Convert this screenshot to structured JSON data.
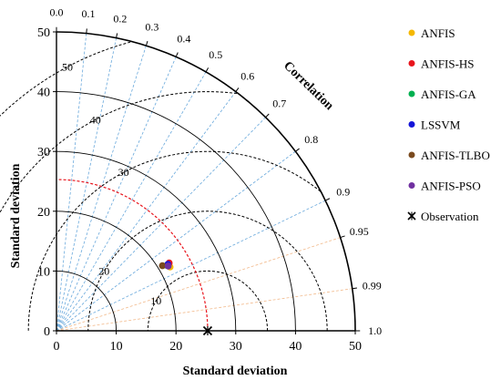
{
  "chart_data": {
    "type": "scatter",
    "chart_kind": "taylor",
    "xlabel": "Standard deviation",
    "ylabel": "Standard deviation",
    "arc_label": "Correlation",
    "std_range": [
      0,
      50
    ],
    "std_ticks": [
      0,
      10,
      20,
      30,
      40,
      50
    ],
    "std_tick_labels": [
      "0",
      "10",
      "20",
      "30",
      "40",
      "50"
    ],
    "corr_ticks": [
      0.0,
      0.1,
      0.2,
      0.3,
      0.4,
      0.5,
      0.6,
      0.7,
      0.8,
      0.9,
      0.95,
      0.99,
      1.0
    ],
    "corr_tick_labels": [
      "0.0",
      "0.1",
      "0.2",
      "0.3",
      "0.4",
      "0.5",
      "0.6",
      "0.7",
      "0.8",
      "0.9",
      "0.95",
      "0.99",
      "1.0"
    ],
    "std_circles": [
      10,
      20,
      30,
      40
    ],
    "rmsd_circles": [
      10,
      20,
      30,
      40,
      50
    ],
    "rmsd_labels": [
      {
        "value": 10,
        "text": "10"
      },
      {
        "value": 20,
        "text": "20"
      },
      {
        "value": 30,
        "text": "30"
      },
      {
        "value": 40,
        "text": "40"
      },
      {
        "value": 50,
        "text": "50"
      }
    ],
    "reference_std": 25.3,
    "series": [
      {
        "name": "ANFIS",
        "color": "#f5b800",
        "std": 21.8,
        "corr": 0.872
      },
      {
        "name": "ANFIS-HS",
        "color": "#e8141c",
        "std": 22.0,
        "corr": 0.857
      },
      {
        "name": "ANFIS-GA",
        "color": "#00b050",
        "std": 21.5,
        "corr": 0.861
      },
      {
        "name": "LSSVM",
        "color": "#1414d8",
        "std": 21.7,
        "corr": 0.859
      },
      {
        "name": "ANFIS-TLBO",
        "color": "#7a4a1e",
        "std": 20.8,
        "corr": 0.852
      },
      {
        "name": "ANFIS-PSO",
        "color": "#7030a0",
        "std": 21.6,
        "corr": 0.865
      }
    ],
    "observation": {
      "name": "Observation",
      "std": 25.3,
      "corr": 1.0
    },
    "legend_position": "right",
    "grid": true
  }
}
